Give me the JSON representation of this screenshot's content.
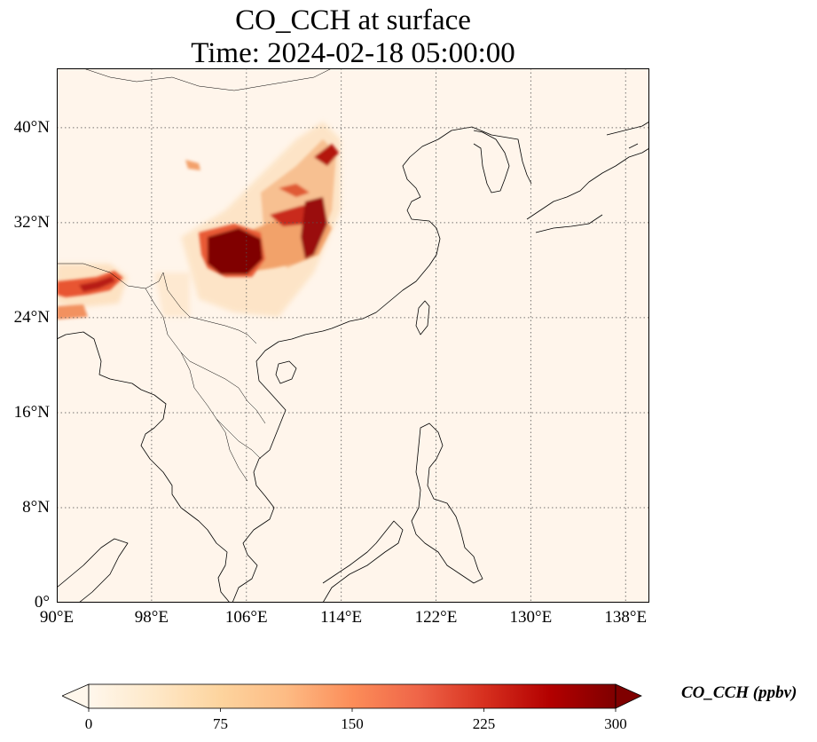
{
  "title": {
    "line1": "CO_CCH at surface",
    "line2": "Time: 2024-02-18 05:00:00"
  },
  "map": {
    "lon_range": [
      90,
      140
    ],
    "lat_range": [
      0,
      45
    ],
    "lon_ticks": [
      {
        "value": 90,
        "label": "90°E"
      },
      {
        "value": 98,
        "label": "98°E"
      },
      {
        "value": 106,
        "label": "106°E"
      },
      {
        "value": 114,
        "label": "114°E"
      },
      {
        "value": 122,
        "label": "122°E"
      },
      {
        "value": 130,
        "label": "130°E"
      },
      {
        "value": 138,
        "label": "138°E"
      }
    ],
    "lat_ticks": [
      {
        "value": 0,
        "label": "0°"
      },
      {
        "value": 8,
        "label": "8°N"
      },
      {
        "value": 16,
        "label": "16°N"
      },
      {
        "value": 24,
        "label": "24°N"
      },
      {
        "value": 32,
        "label": "32°N"
      },
      {
        "value": 40,
        "label": "40°N"
      }
    ],
    "gridlines": true,
    "background_color": "#fff5eb"
  },
  "colorbar": {
    "label": "CO_CCH (ppbv)",
    "min": 0,
    "max": 300,
    "ticks": [
      {
        "value": 0,
        "label": "0"
      },
      {
        "value": 75,
        "label": "75"
      },
      {
        "value": 150,
        "label": "150"
      },
      {
        "value": 225,
        "label": "225"
      },
      {
        "value": 300,
        "label": "300"
      }
    ],
    "colormap": "OrRd",
    "colors": [
      "#fff7ec",
      "#fee8c8",
      "#fdd49e",
      "#fdbb84",
      "#fc8d59",
      "#ef6548",
      "#d7301f",
      "#b30000",
      "#7f0000"
    ],
    "extend": "both"
  }
}
